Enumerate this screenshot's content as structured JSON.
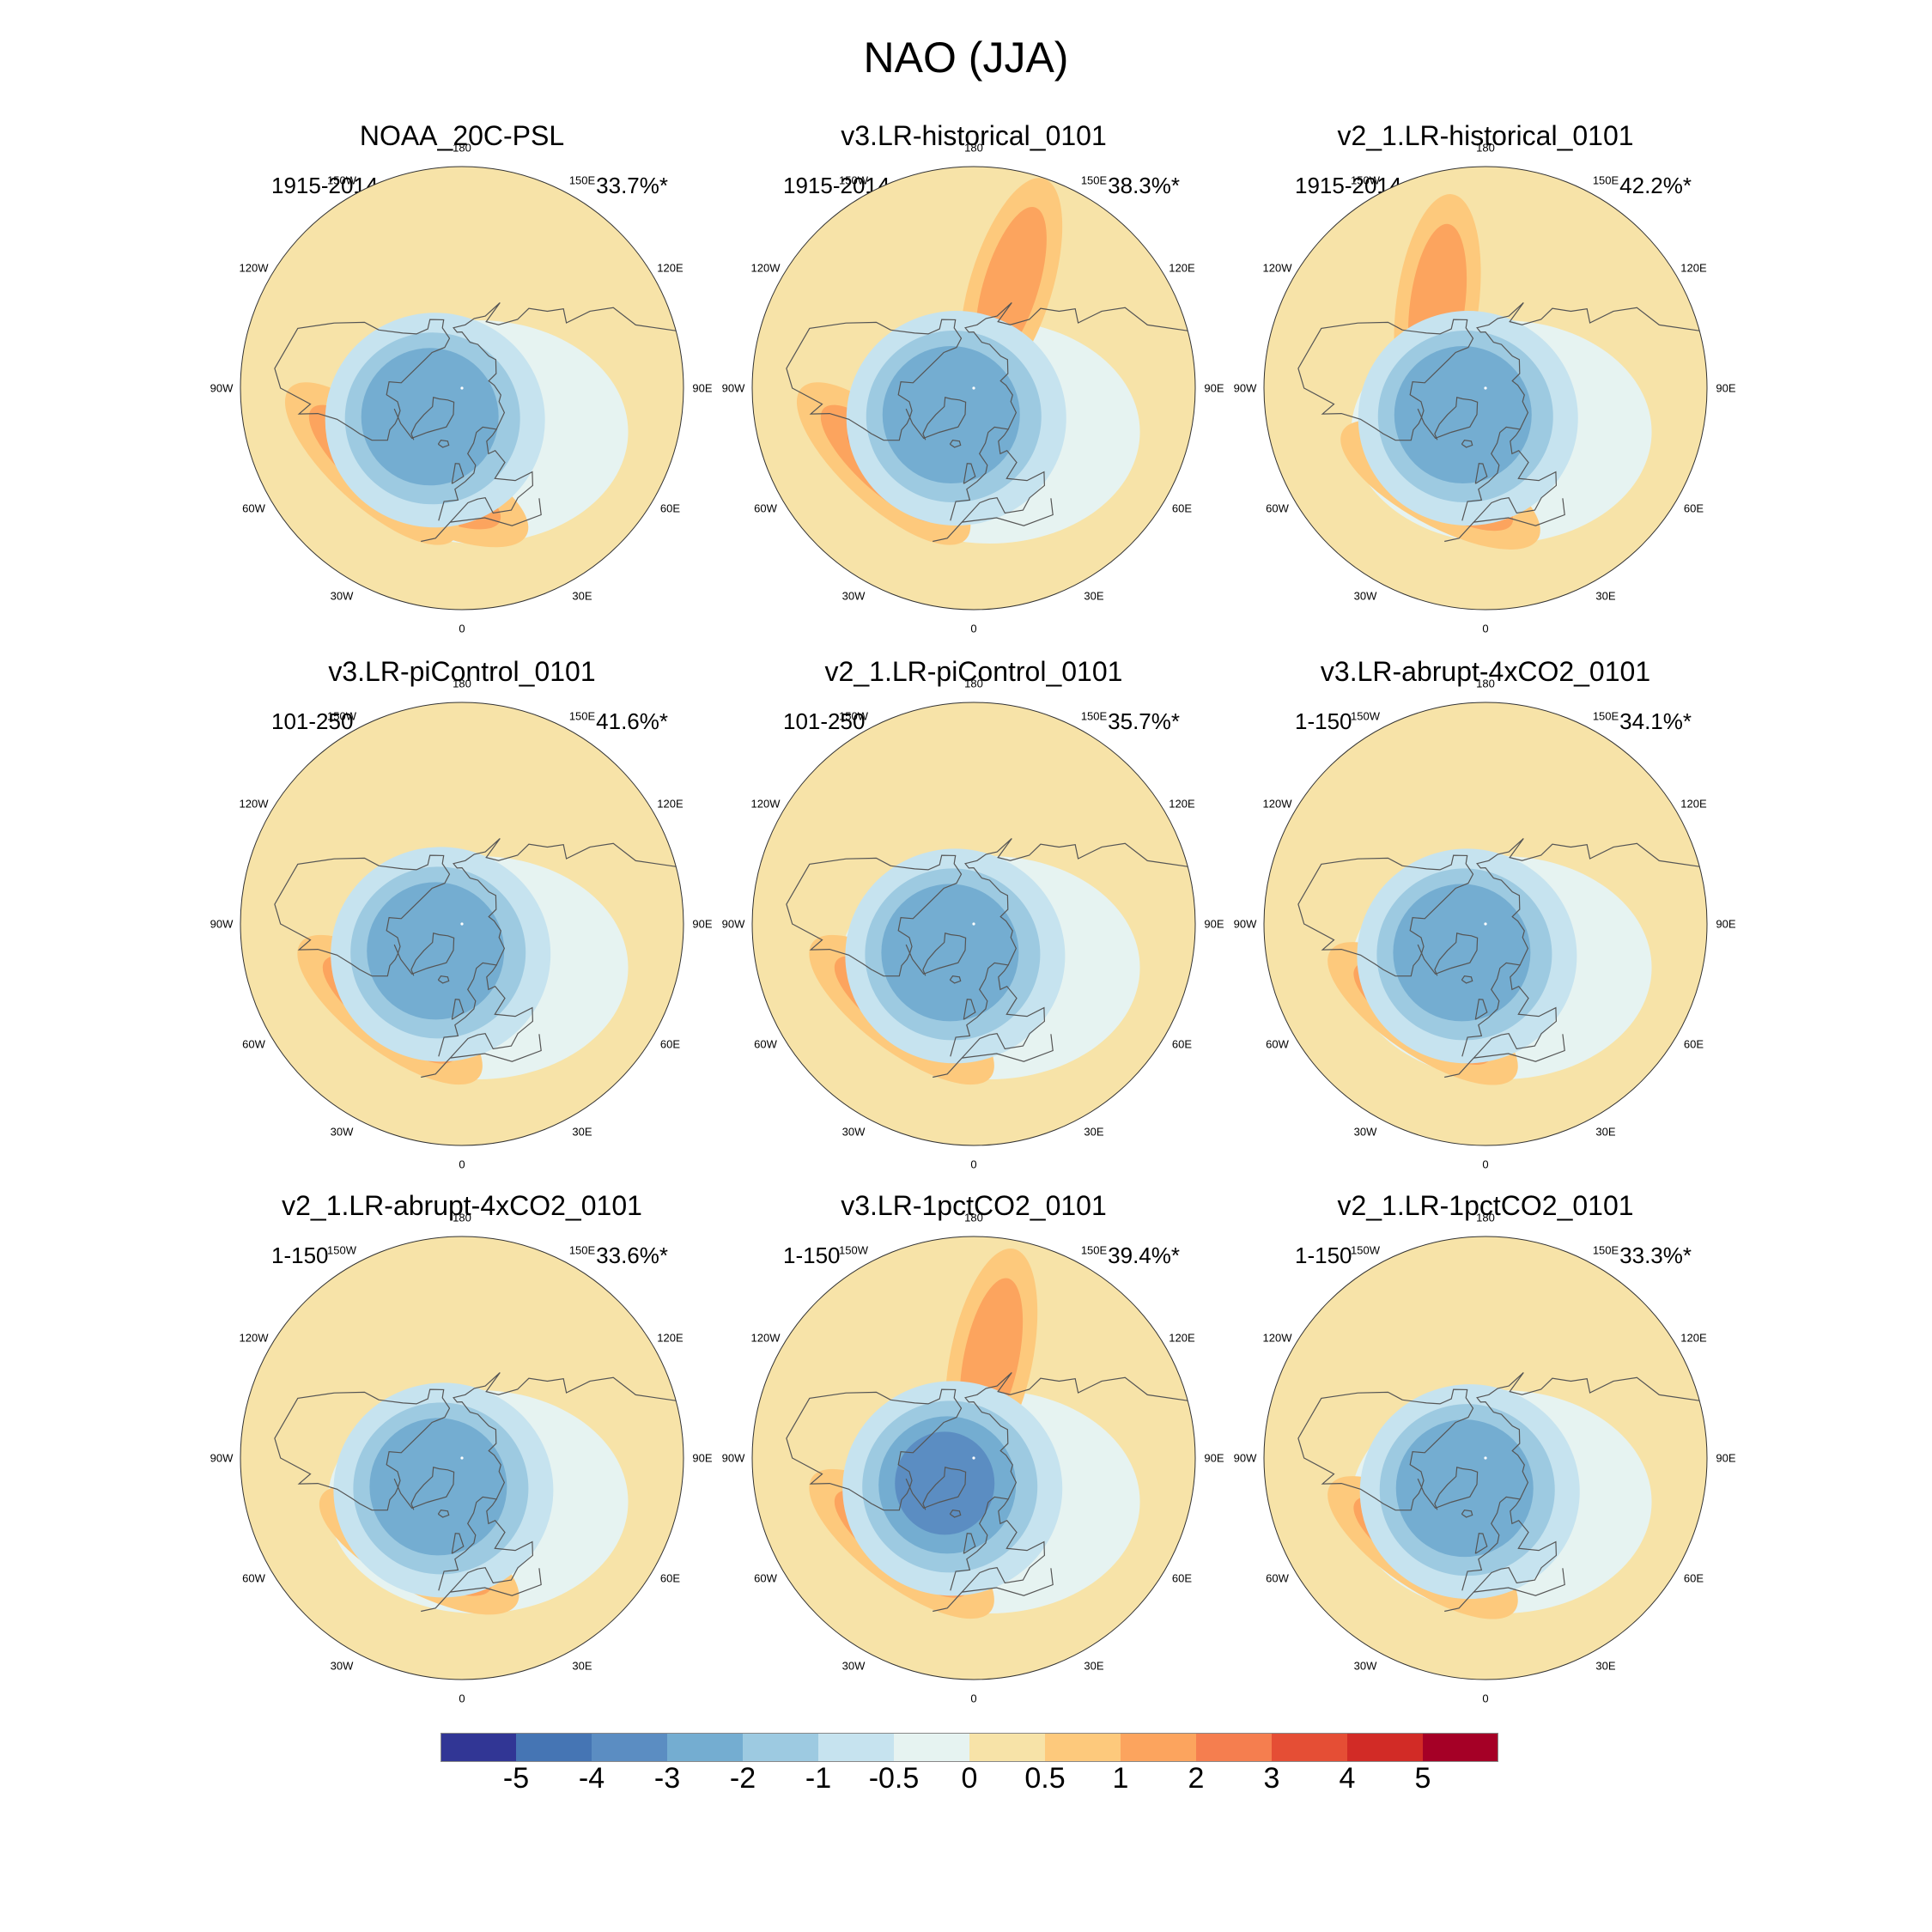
{
  "title": "NAO (JJA)",
  "chart_data": {
    "type": "contour-map",
    "projection": "north polar stereographic",
    "variable": "sea level pressure NAO regression pattern",
    "panels": [
      {
        "title": "NOAA_20C-PSL",
        "period": "1915-2014",
        "variance": "33.7%*",
        "features": {
          "low": {
            "lon": -40,
            "lat": 72,
            "min": -3
          },
          "highs": [
            {
              "lon": -20,
              "lat": 47,
              "max": 2
            },
            {
              "lon": -50,
              "lat": 42,
              "max": 1
            }
          ]
        }
      },
      {
        "title": "v3.LR-historical_0101",
        "period": "1915-2014",
        "variance": "38.3%*",
        "features": {
          "low": {
            "lon": -30,
            "lat": 75,
            "min": -3
          },
          "highs": [
            {
              "lon": -50,
              "lat": 42,
              "max": 2
            },
            {
              "lon": 160,
              "lat": 45,
              "max": 1
            }
          ]
        }
      },
      {
        "title": "v2_1.LR-historical_0101",
        "period": "1915-2014",
        "variance": "42.2%*",
        "features": {
          "low": {
            "lon": -30,
            "lat": 75,
            "min": -3
          },
          "highs": [
            {
              "lon": -25,
              "lat": 46,
              "max": 2
            },
            {
              "lon": -150,
              "lat": 50,
              "max": 1
            }
          ]
        }
      },
      {
        "title": "v3.LR-piControl_0101",
        "period": "101-250",
        "variance": "41.6%*",
        "features": {
          "low": {
            "lon": -35,
            "lat": 74,
            "min": -3
          },
          "highs": [
            {
              "lon": -40,
              "lat": 44,
              "max": 2
            }
          ]
        }
      },
      {
        "title": "v2_1.LR-piControl_0101",
        "period": "101-250",
        "variance": "35.7%*",
        "features": {
          "low": {
            "lon": -30,
            "lat": 74,
            "min": -3
          },
          "highs": [
            {
              "lon": -40,
              "lat": 44,
              "max": 1
            }
          ]
        }
      },
      {
        "title": "v3.LR-abrupt-4xCO2_0101",
        "period": "1-150",
        "variance": "34.1%*",
        "features": {
          "low": {
            "lon": -30,
            "lat": 74,
            "min": -3
          },
          "highs": [
            {
              "lon": -35,
              "lat": 45,
              "max": 1
            }
          ]
        }
      },
      {
        "title": "v2_1.LR-abrupt-4xCO2_0101",
        "period": "1-150",
        "variance": "33.6%*",
        "features": {
          "low": {
            "lon": -30,
            "lat": 74,
            "min": -3
          },
          "highs": [
            {
              "lon": -25,
              "lat": 48,
              "max": 2
            }
          ]
        }
      },
      {
        "title": "v3.LR-1pctCO2_0101",
        "period": "1-150",
        "variance": "39.4%*",
        "features": {
          "low": {
            "lon": -35,
            "lat": 74,
            "min": -4
          },
          "highs": [
            {
              "lon": -40,
              "lat": 44,
              "max": 2
            },
            {
              "lon": 170,
              "lat": 48,
              "max": 1
            }
          ]
        }
      },
      {
        "title": "v2_1.LR-1pctCO2_0101",
        "period": "1-150",
        "variance": "33.3%*",
        "features": {
          "low": {
            "lon": -25,
            "lat": 74,
            "min": -3
          },
          "highs": [
            {
              "lon": -35,
              "lat": 45,
              "max": 2
            }
          ]
        }
      }
    ],
    "longitude_labels": [
      "180",
      "150E",
      "120E",
      "90E",
      "60E",
      "30E",
      "0",
      "30W",
      "60W",
      "90W",
      "120W",
      "150W"
    ],
    "colorbar": {
      "levels": [
        "-5",
        "-4",
        "-3",
        "-2",
        "-1",
        "-0.5",
        "0",
        "0.5",
        "1",
        "2",
        "3",
        "4",
        "5"
      ],
      "colors": [
        "#313695",
        "#4575b4",
        "#5b8dc2",
        "#74add1",
        "#9dcae1",
        "#c6e3ef",
        "#e6f3f1",
        "#f7e3a8",
        "#fdc97c",
        "#fca45e",
        "#f57e4f",
        "#e54e35",
        "#d22b26",
        "#a50026"
      ]
    }
  }
}
